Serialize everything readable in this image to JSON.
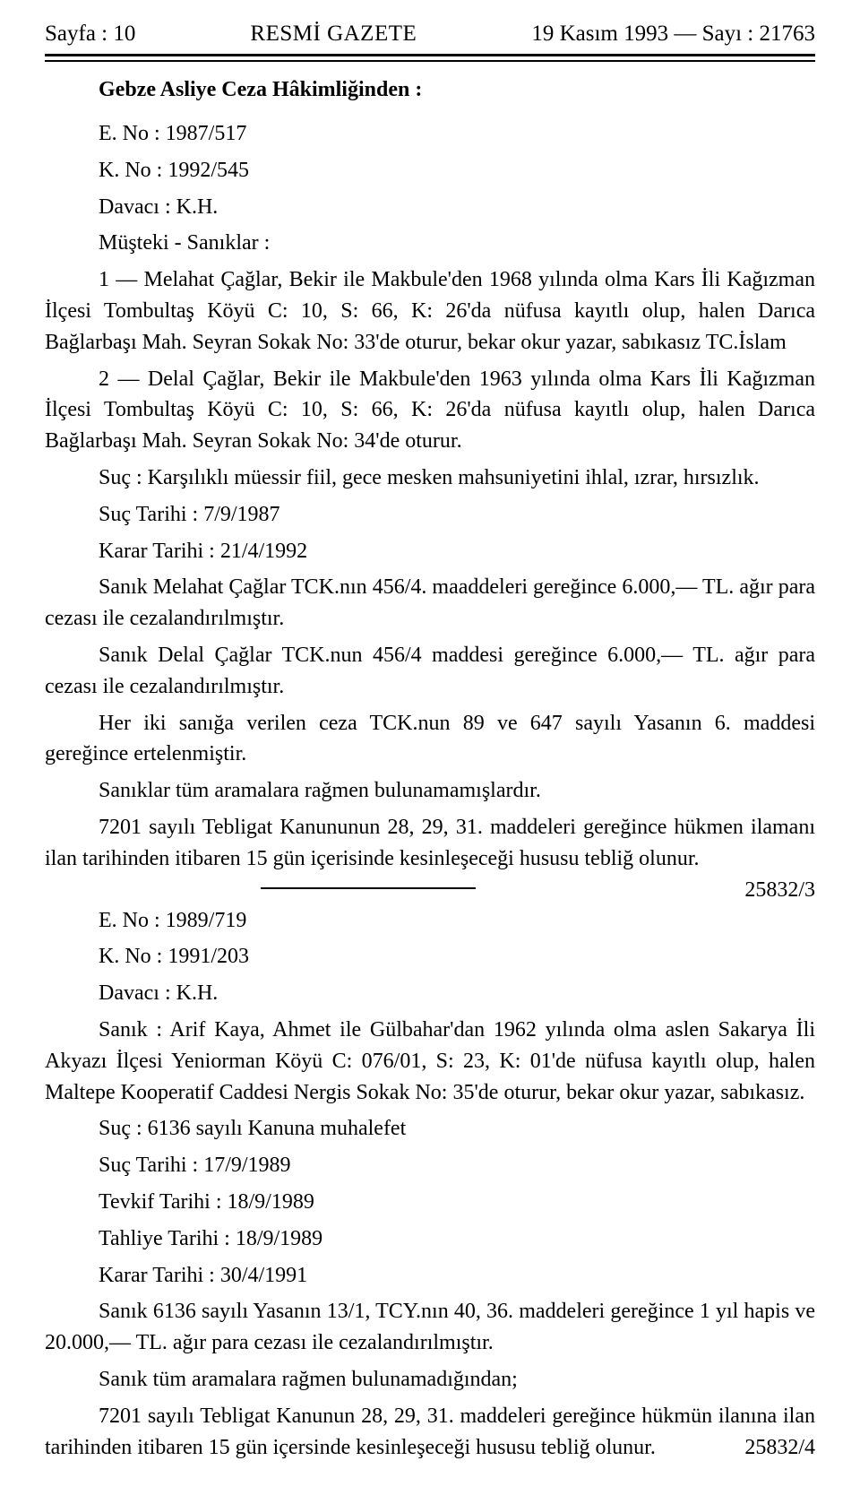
{
  "header": {
    "left": "Sayfa : 10",
    "center": "RESMİ GAZETE",
    "right": "19 Kasım 1993 — Sayı : 21763"
  },
  "court": "Gebze Asliye Ceza Hâkimliğinden :",
  "case1": {
    "e_no": "E. No : 1987/517",
    "k_no": "K. No : 1992/545",
    "davaci": "Davacı : K.H.",
    "musteki_label": "Müşteki - Sanıklar :",
    "sanik1": "1 — Melahat Çağlar, Bekir ile Makbule'den 1968 yılında olma Kars İli Kağızman İlçesi Tombultaş Köyü C: 10, S: 66, K: 26'da nüfusa kayıtlı olup, halen Darıca Bağlarbaşı Mah. Seyran Sokak No: 33'de oturur, bekar okur yazar, sabıkasız TC.İslam",
    "sanik2": "2 — Delal Çağlar, Bekir ile Makbule'den 1963 yılında olma Kars İli Kağızman İlçesi Tombultaş Köyü C: 10, S: 66, K: 26'da nüfusa kayıtlı olup, halen Darıca Bağlarbaşı Mah. Seyran Sokak No: 34'de oturur.",
    "suc": "Suç : Karşılıklı müessir fiil, gece mesken mahsuniyetini ihlal, ızrar, hırsızlık.",
    "suc_tarihi": "Suç Tarihi : 7/9/1987",
    "karar_tarihi": "Karar Tarihi : 21/4/1992",
    "p1": "Sanık Melahat Çağlar TCK.nın 456/4. maaddeleri gereğince 6.000,— TL. ağır para cezası ile cezalandırılmıştır.",
    "p2": "Sanık Delal Çağlar TCK.nun 456/4 maddesi gereğince 6.000,— TL. ağır para cezası ile cezalandırılmıştır.",
    "p3": "Her iki sanığa verilen ceza TCK.nun 89 ve 647 sayılı Yasanın 6. maddesi gereğince ertelenmiştir.",
    "p4": "Sanıklar tüm aramalara rağmen bulunamamışlardır.",
    "p5_text": "7201 sayılı Tebligat Kanununun 28, 29, 31. maddeleri gereğince hükmen ilamanı ilan tarihinden itibaren 15 gün içerisinde kesinleşeceği hususu tebliğ olunur.",
    "p5_ref": "25832/3"
  },
  "case2": {
    "e_no": "E. No : 1989/719",
    "k_no": "K. No : 1991/203",
    "davaci": "Davacı : K.H.",
    "sanik": "Sanık : Arif Kaya, Ahmet ile Gülbahar'dan 1962 yılında olma aslen Sakarya İli Akyazı İlçesi Yeniorman Köyü C: 076/01, S: 23, K: 01'de nüfusa kayıtlı olup, halen Maltepe Kooperatif Caddesi Nergis Sokak No: 35'de oturur, bekar okur yazar, sabıkasız.",
    "suc": "Suç : 6136 sayılı Kanuna muhalefet",
    "suc_tarihi": "Suç Tarihi : 17/9/1989",
    "tevkif_tarihi": "Tevkif Tarihi : 18/9/1989",
    "tahliye_tarihi": "Tahliye Tarihi : 18/9/1989",
    "karar_tarihi": "Karar Tarihi : 30/4/1991",
    "p1": "Sanık 6136 sayılı Yasanın 13/1, TCY.nın 40, 36. maddeleri gereğince 1 yıl hapis ve 20.000,— TL. ağır para cezası ile cezalandırılmıştır.",
    "p2": "Sanık tüm aramalara rağmen bulunamadığından;",
    "p3_text": "7201 sayılı Tebligat Kanunun 28, 29, 31. maddeleri gereğince hükmün ilanına ilan tarihinden itibaren 15 gün içersinde kesinleşeceği hususu tebliğ olunur.",
    "p3_ref": "25832/4"
  }
}
